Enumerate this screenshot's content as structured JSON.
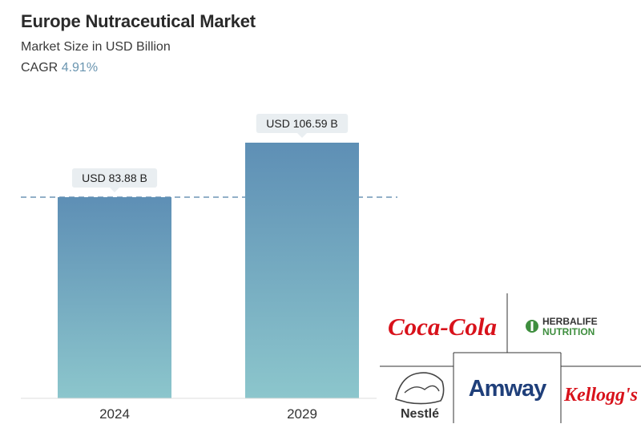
{
  "header": {
    "title": "Europe Nutraceutical Market",
    "subtitle": "Market Size in USD Billion",
    "cagr_label": "CAGR",
    "cagr_value": "4.91%"
  },
  "chart_data": {
    "type": "bar",
    "categories": [
      "2024",
      "2029"
    ],
    "values": [
      83.88,
      106.59
    ],
    "data_labels": [
      "USD 83.88 B",
      "USD 106.59 B"
    ],
    "title": "Europe Nutraceutical Market",
    "subtitle": "Market Size in USD Billion",
    "xlabel": "",
    "ylabel": "",
    "ylim": [
      0,
      106.59
    ],
    "reference_line": 83.88,
    "grid": false,
    "colors": {
      "bar_top": "#5e8fb5",
      "bar_bottom": "#8cc6cc",
      "reference_line": "#6f95b5",
      "label_bg": "#e9eef1"
    }
  },
  "logos": {
    "cocacola": "Coca-Cola",
    "herbalife_top": "HERBALIFE",
    "herbalife_bottom": "NUTRITION",
    "amway": "Amway",
    "kelloggs": "Kellogg's",
    "nestle": "Nestlé"
  }
}
